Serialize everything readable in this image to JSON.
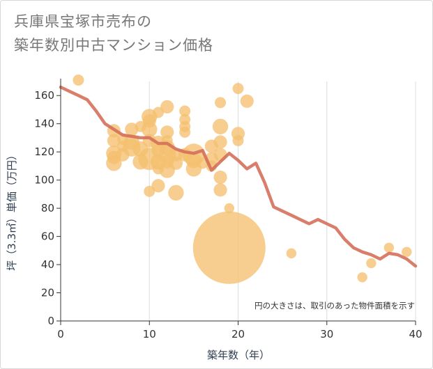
{
  "title_lines": [
    "兵庫県宝塚市売布の",
    "築年数別中古マンション価格"
  ],
  "chart_data": {
    "type": "scatter",
    "title": "兵庫県宝塚市売布の築年数別中古マンション価格",
    "xlabel": "築年数（年）",
    "ylabel": "坪（3.3㎡）単価（万円）",
    "xlim": [
      0,
      40
    ],
    "ylim": [
      0,
      170
    ],
    "xticks": [
      0,
      10,
      20,
      30,
      40
    ],
    "yticks": [
      0,
      20,
      40,
      60,
      80,
      100,
      120,
      140,
      160
    ],
    "grid": "vertical",
    "annotation": "円の大きさは、取引のあった物件面積を示す",
    "bubble_color": "#f5c06f",
    "line_color": "#d4705a",
    "bubbles": [
      {
        "x": 2,
        "y": 171,
        "s": 1
      },
      {
        "x": 6,
        "y": 135,
        "s": 1.2
      },
      {
        "x": 6,
        "y": 128,
        "s": 1.2
      },
      {
        "x": 6,
        "y": 119,
        "s": 1.4
      },
      {
        "x": 6,
        "y": 116,
        "s": 1.2
      },
      {
        "x": 6,
        "y": 112,
        "s": 1.4
      },
      {
        "x": 7,
        "y": 129,
        "s": 1
      },
      {
        "x": 7,
        "y": 124,
        "s": 1
      },
      {
        "x": 7,
        "y": 118,
        "s": 1.2
      },
      {
        "x": 8,
        "y": 136,
        "s": 1.2
      },
      {
        "x": 8,
        "y": 127,
        "s": 1.4
      },
      {
        "x": 8,
        "y": 123,
        "s": 1.6
      },
      {
        "x": 9,
        "y": 138,
        "s": 1
      },
      {
        "x": 9,
        "y": 122,
        "s": 1.4
      },
      {
        "x": 9,
        "y": 113,
        "s": 1.4
      },
      {
        "x": 10,
        "y": 145,
        "s": 1.4
      },
      {
        "x": 10,
        "y": 142,
        "s": 1.2
      },
      {
        "x": 10,
        "y": 136,
        "s": 1.4
      },
      {
        "x": 10,
        "y": 128,
        "s": 1.2
      },
      {
        "x": 10,
        "y": 115,
        "s": 2
      },
      {
        "x": 10,
        "y": 92,
        "s": 1
      },
      {
        "x": 11,
        "y": 148,
        "s": 1
      },
      {
        "x": 11,
        "y": 126,
        "s": 1.4
      },
      {
        "x": 11,
        "y": 121,
        "s": 1.2
      },
      {
        "x": 11,
        "y": 113,
        "s": 1.4
      },
      {
        "x": 11,
        "y": 108,
        "s": 1
      },
      {
        "x": 11,
        "y": 96,
        "s": 1.2
      },
      {
        "x": 12,
        "y": 152,
        "s": 1.2
      },
      {
        "x": 12,
        "y": 134,
        "s": 1.2
      },
      {
        "x": 12,
        "y": 128,
        "s": 1
      },
      {
        "x": 12,
        "y": 123,
        "s": 1.4
      },
      {
        "x": 12,
        "y": 118,
        "s": 1.6
      },
      {
        "x": 12,
        "y": 113,
        "s": 1.2
      },
      {
        "x": 12,
        "y": 107,
        "s": 1.4
      },
      {
        "x": 13,
        "y": 118,
        "s": 1.2
      },
      {
        "x": 13,
        "y": 112,
        "s": 1.2
      },
      {
        "x": 13,
        "y": 91,
        "s": 1.4
      },
      {
        "x": 14,
        "y": 149,
        "s": 1
      },
      {
        "x": 14,
        "y": 143,
        "s": 1
      },
      {
        "x": 14,
        "y": 138,
        "s": 1
      },
      {
        "x": 14,
        "y": 134,
        "s": 1
      },
      {
        "x": 14,
        "y": 118,
        "s": 1.2
      },
      {
        "x": 15,
        "y": 118,
        "s": 2
      },
      {
        "x": 15,
        "y": 114,
        "s": 1.4
      },
      {
        "x": 15,
        "y": 108,
        "s": 1.4
      },
      {
        "x": 16,
        "y": 112,
        "s": 1
      },
      {
        "x": 17,
        "y": 124,
        "s": 1.2
      },
      {
        "x": 17,
        "y": 115,
        "s": 1.2
      },
      {
        "x": 17,
        "y": 110,
        "s": 1
      },
      {
        "x": 18,
        "y": 155,
        "s": 1
      },
      {
        "x": 18,
        "y": 138,
        "s": 1.4
      },
      {
        "x": 18,
        "y": 127,
        "s": 1.2
      },
      {
        "x": 18,
        "y": 118,
        "s": 1.2
      },
      {
        "x": 18,
        "y": 102,
        "s": 1.2
      },
      {
        "x": 18,
        "y": 93,
        "s": 1.2
      },
      {
        "x": 19,
        "y": 80,
        "s": 0.9
      },
      {
        "x": 19,
        "y": 52,
        "s": 6.5
      },
      {
        "x": 20,
        "y": 165,
        "s": 1
      },
      {
        "x": 20,
        "y": 133,
        "s": 1.2
      },
      {
        "x": 20,
        "y": 128,
        "s": 1
      },
      {
        "x": 21,
        "y": 156,
        "s": 1.2
      },
      {
        "x": 26,
        "y": 48,
        "s": 0.9
      },
      {
        "x": 34,
        "y": 31,
        "s": 0.9
      },
      {
        "x": 35,
        "y": 41,
        "s": 0.9
      },
      {
        "x": 37,
        "y": 52,
        "s": 0.9
      },
      {
        "x": 39,
        "y": 49,
        "s": 0.9
      }
    ],
    "trend_line": {
      "x": [
        0,
        1,
        2,
        3,
        4,
        5,
        6,
        7,
        8,
        9,
        10,
        11,
        12,
        13,
        14,
        15,
        16,
        17,
        18,
        19,
        20,
        21,
        22,
        23,
        24,
        25,
        26,
        27,
        28,
        29,
        30,
        31,
        32,
        33,
        34,
        35,
        36,
        37,
        38,
        39,
        40
      ],
      "y": [
        166,
        163,
        160,
        157,
        149,
        140,
        136,
        132,
        131,
        130,
        130,
        126,
        126,
        122,
        120,
        119,
        121,
        107,
        113,
        119,
        114,
        108,
        112,
        98,
        81,
        78,
        75,
        72,
        69,
        72,
        69,
        66,
        58,
        52,
        49,
        47,
        44,
        48,
        47,
        44,
        39
      ]
    }
  }
}
